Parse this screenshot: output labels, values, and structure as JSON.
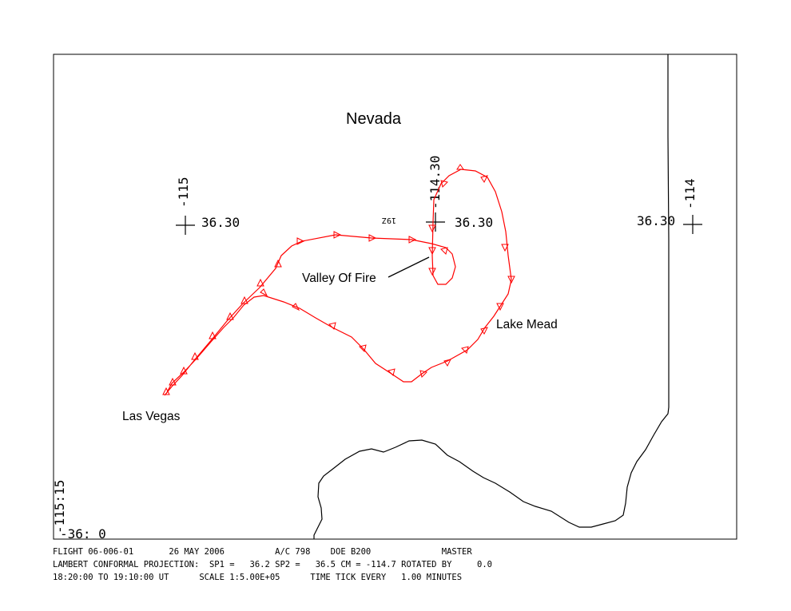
{
  "map": {
    "state_label": "Nevada",
    "places": {
      "valley_of_fire": "Valley Of Fire",
      "lake_mead": "Lake Mead",
      "las_vegas": "Las Vegas"
    },
    "ticks": {
      "lon_115": "-115",
      "lat_a": "36.30",
      "lon_11430": "-114.30",
      "lat_b": "36.30",
      "lat_c": "36.30",
      "lon_114": "-114",
      "corner_lon": "-115:15",
      "corner_lat": "-36: 0"
    },
    "flight_annotation": "19Z",
    "colors": {
      "track": "#ff0000",
      "border": "#000000"
    }
  },
  "footer": {
    "line1": "FLIGHT 06-006-01       26 MAY 2006          A/C 798    DOE B200              MASTER",
    "line2": "LAMBERT CONFORMAL PROJECTION:  SP1 =   36.2 SP2 =   36.5 CM = -114.7 ROTATED BY     0.0",
    "line3": "18:20:00 TO 19:10:00 UT      SCALE 1:5.00E+05      TIME TICK EVERY   1.00 MINUTES"
  }
}
